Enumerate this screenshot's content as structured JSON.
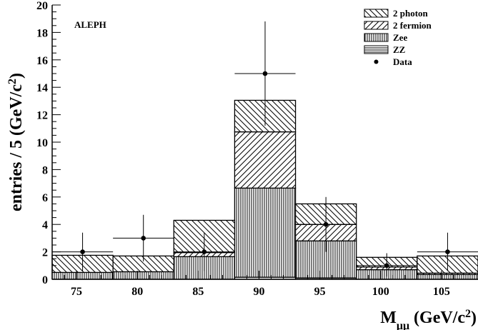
{
  "chart_data": {
    "type": "bar",
    "stacked": true,
    "histogram": true,
    "annotation": "ALEPH",
    "ylabel": "entries / 5 (GeV/c²)",
    "ylabel_parts": {
      "main": "entries / 5 (GeV/c",
      "sup": "2",
      "end": ")"
    },
    "xlabel_parts": {
      "main": "M",
      "sub": "μμ",
      "mid": " (GeV/c",
      "sup": "2",
      "end": ")"
    },
    "xlim": [
      73,
      108
    ],
    "ylim": [
      0,
      20
    ],
    "bin_edges": [
      73,
      78,
      83,
      88,
      93,
      98,
      103,
      108
    ],
    "x_ticks": [
      75,
      80,
      85,
      90,
      95,
      100,
      105
    ],
    "y_ticks": [
      0,
      2,
      4,
      6,
      8,
      10,
      12,
      14,
      16,
      18,
      20
    ],
    "series": [
      {
        "name": "ZZ",
        "pattern": "horizontal",
        "values": [
          0.0,
          0.0,
          0.0,
          0.15,
          0.1,
          0.0,
          0.0
        ]
      },
      {
        "name": "Zee",
        "pattern": "vertical",
        "values": [
          0.5,
          0.55,
          1.65,
          6.5,
          2.7,
          0.7,
          0.35
        ]
      },
      {
        "name": "2 fermion",
        "pattern": "diag-up",
        "values": [
          0.0,
          0.0,
          0.3,
          4.1,
          1.2,
          0.2,
          0.1
        ]
      },
      {
        "name": "2 photon",
        "pattern": "diag-down",
        "values": [
          1.25,
          1.15,
          2.35,
          2.3,
          1.5,
          0.7,
          1.25
        ]
      }
    ],
    "data_points": {
      "name": "Data",
      "x": [
        75.5,
        80.5,
        85.5,
        90.5,
        95.5,
        100.5,
        105.5
      ],
      "y": [
        2,
        3,
        2,
        15,
        4,
        1,
        2
      ],
      "y_low": [
        0.6,
        1.3,
        0.6,
        11.2,
        2.0,
        0.2,
        0.6
      ],
      "y_high": [
        3.4,
        4.7,
        3.4,
        18.8,
        6.0,
        1.9,
        3.4
      ],
      "x_err": 2.5
    },
    "legend": {
      "position": "top-right",
      "entries": [
        {
          "label": "2 photon",
          "pattern": "diag-down"
        },
        {
          "label": "2 fermion",
          "pattern": "diag-up"
        },
        {
          "label": "Zee",
          "pattern": "vertical"
        },
        {
          "label": "ZZ",
          "pattern": "horizontal"
        },
        {
          "label": "Data",
          "pattern": "dot"
        }
      ]
    }
  }
}
